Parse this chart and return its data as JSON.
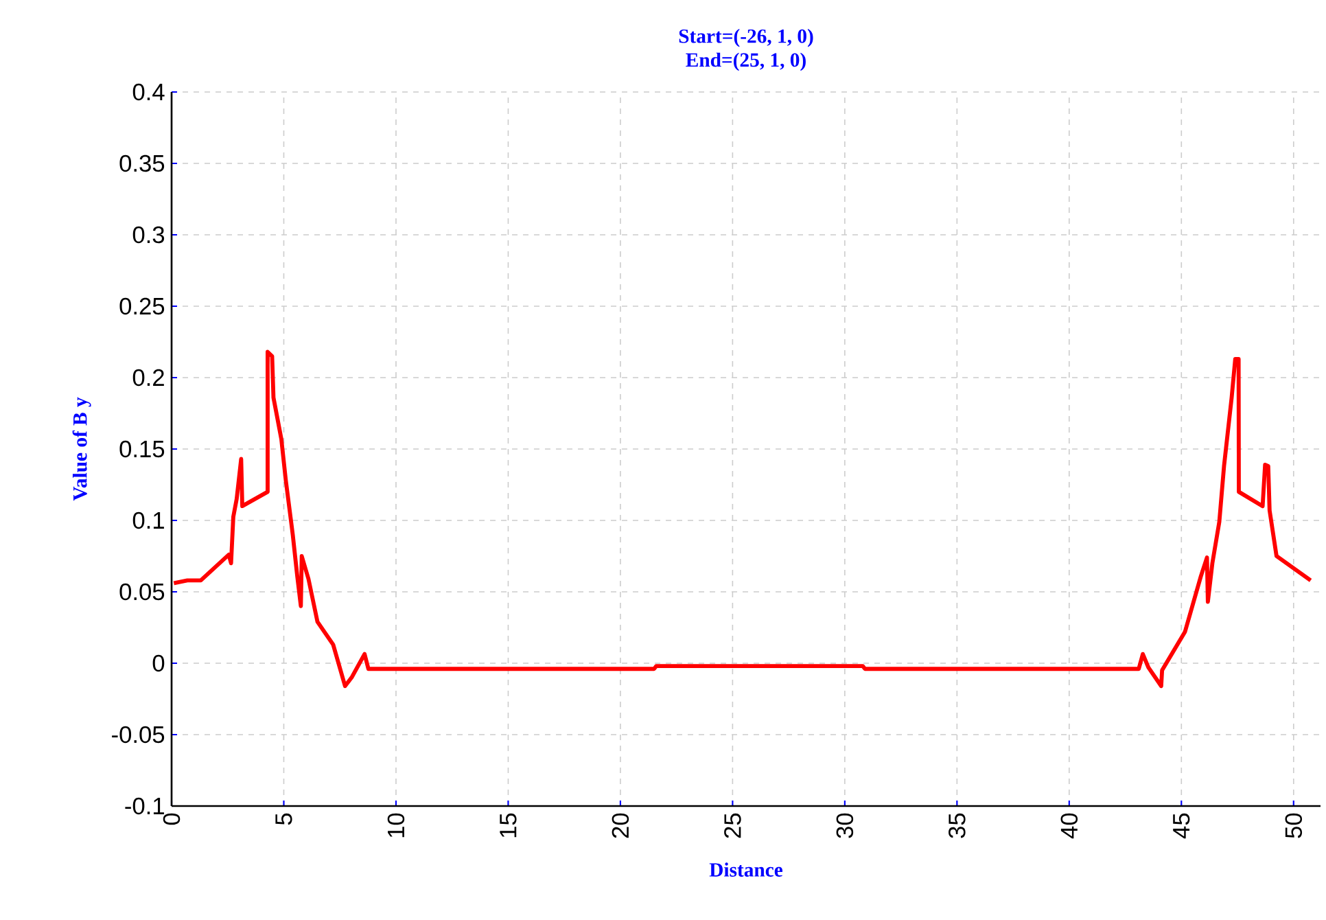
{
  "chart_data": {
    "type": "line",
    "title": "Start=(-26, 1, 0)",
    "subtitle": "End=(25, 1, 0)",
    "xlabel": "Distance",
    "ylabel": "Value of B y",
    "xlim": [
      0,
      51.2
    ],
    "ylim": [
      -0.1,
      0.4
    ],
    "xticks": [
      0,
      5,
      10,
      15,
      20,
      25,
      30,
      35,
      40,
      45,
      50
    ],
    "yticks": [
      -0.1,
      -0.05,
      0,
      0.05,
      0.1,
      0.15,
      0.2,
      0.25,
      0.3,
      0.35,
      0.4
    ],
    "grid": true,
    "line_style": "solid",
    "series": [
      {
        "color": "#ff0000",
        "x": [
          0.1,
          0.7,
          1.3,
          2.55,
          2.65,
          2.75,
          2.9,
          3.1,
          3.15,
          4.28,
          4.28,
          4.48,
          4.54,
          4.89,
          5.09,
          5.4,
          5.6,
          5.76,
          5.8,
          6.1,
          6.5,
          7.2,
          7.73,
          8.04,
          8.6,
          8.77,
          21.5,
          21.6,
          30.8,
          30.9,
          42.5,
          43.1,
          43.28,
          43.53,
          44.1,
          44.14,
          45.16,
          45.87,
          46.14,
          46.18,
          46.38,
          46.69,
          46.9,
          47.24,
          47.4,
          47.55,
          47.56,
          48.62,
          48.73,
          48.87,
          48.93,
          49.24,
          50.76
        ],
        "values": [
          0.056,
          0.058,
          0.058,
          0.076,
          0.07,
          0.1025,
          0.115,
          0.143,
          0.11,
          0.12,
          0.218,
          0.215,
          0.186,
          0.157,
          0.128,
          0.09,
          0.061,
          0.04,
          0.075,
          0.059,
          0.029,
          0.013,
          -0.016,
          -0.0096,
          0.0064,
          -0.004,
          -0.004,
          -0.002,
          -0.002,
          -0.004,
          -0.004,
          -0.004,
          0.0064,
          -0.003,
          -0.016,
          -0.005,
          0.022,
          0.061,
          0.074,
          0.043,
          0.07,
          0.099,
          0.138,
          0.186,
          0.213,
          0.213,
          0.12,
          0.11,
          0.139,
          0.138,
          0.107,
          0.075,
          0.058
        ]
      }
    ]
  }
}
